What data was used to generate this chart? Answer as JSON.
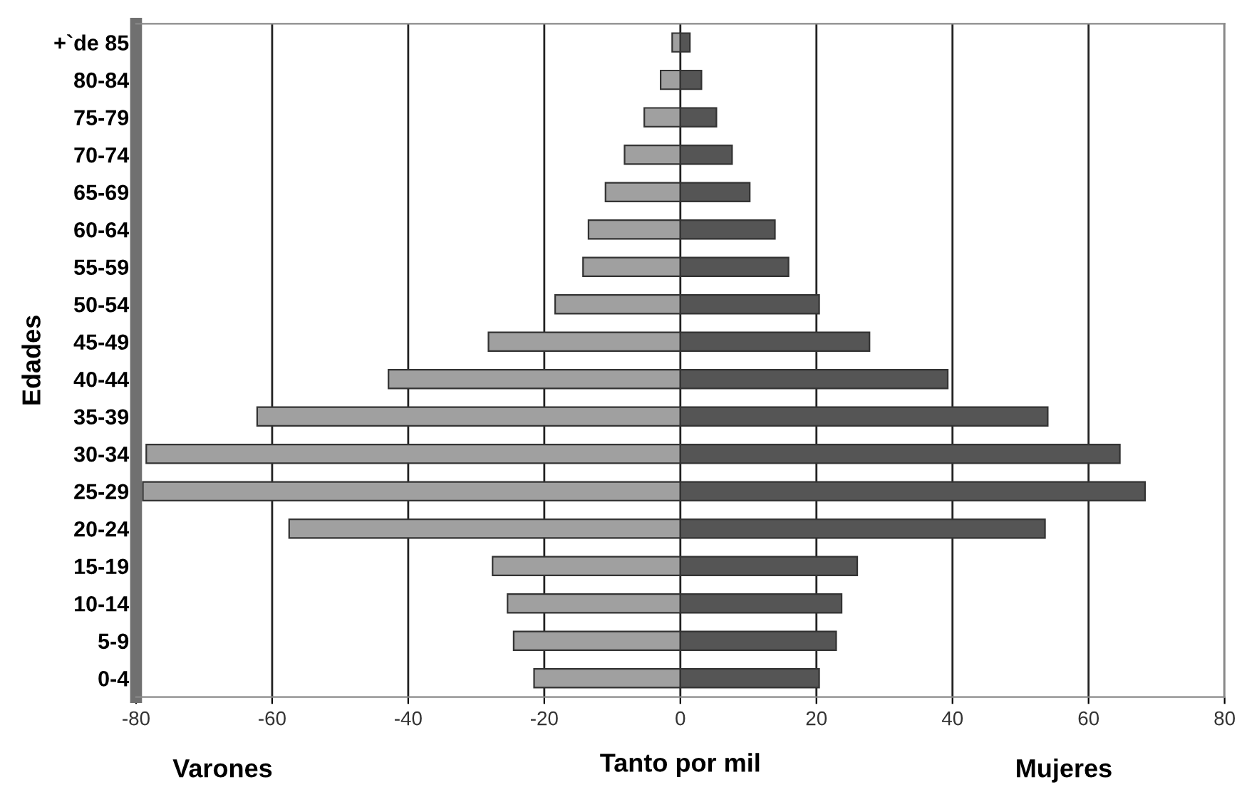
{
  "chart_data": {
    "type": "bar",
    "orientation": "horizontal",
    "stacked": true,
    "ylabel": "Edades",
    "xlabel": "Tanto por mil",
    "annotations": [
      "Varones",
      "Mujeres"
    ],
    "categories": [
      "+`de 85",
      "80-84",
      "75-79",
      "70-74",
      "65-69",
      "60-64",
      "55-59",
      "50-54",
      "45-49",
      "40-44",
      "35-39",
      "30-34",
      "25-29",
      "20-24",
      "15-19",
      "10-14",
      "5-9",
      "0-4"
    ],
    "series": [
      {
        "color": "#a0a0a0",
        "values": [
          -1.2,
          -2.9,
          -5.3,
          -8.2,
          -11.0,
          -13.5,
          -14.3,
          -18.4,
          -28.2,
          -42.9,
          -62.2,
          -78.5,
          -79.0,
          -57.5,
          -27.6,
          -25.4,
          -24.5,
          -21.5
        ]
      },
      {
        "color": "#555555",
        "values": [
          1.4,
          3.1,
          5.3,
          7.6,
          10.2,
          13.9,
          15.9,
          20.4,
          27.8,
          39.3,
          54.0,
          64.6,
          68.3,
          53.6,
          26.0,
          23.7,
          22.9,
          20.4
        ]
      }
    ],
    "xlim": [
      -80,
      80
    ],
    "xticks": [
      -80,
      -60,
      -40,
      -20,
      0,
      20,
      40,
      60,
      80
    ],
    "grid": "x",
    "legend": false
  }
}
